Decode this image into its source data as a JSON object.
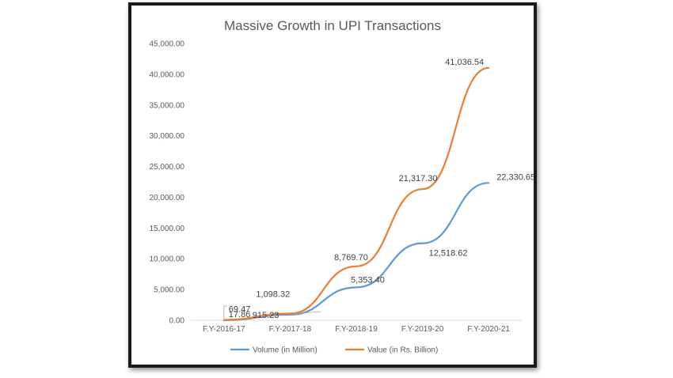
{
  "chart_data": {
    "type": "line",
    "title": "Massive Growth in UPI Transactions",
    "categories": [
      "F.Y-2016-17",
      "F.Y-2017-18",
      "F.Y-2018-19",
      "F.Y-2019-20",
      "F.Y-2020-21"
    ],
    "ylim": [
      0,
      45000
    ],
    "yticks": [
      "0.00",
      "5,000.00",
      "10,000.00",
      "15,000.00",
      "20,000.00",
      "25,000.00",
      "30,000.00",
      "35,000.00",
      "40,000.00",
      "45,000.00"
    ],
    "legend_position": "bottom",
    "grid": false,
    "series": [
      {
        "name": "Volume (in Million)",
        "color": "#5b9bd5",
        "values": [
          17.86,
          915.23,
          5353.4,
          12518.62,
          22330.65
        ],
        "labels": [
          "17.86",
          "915.23",
          "5,353.40",
          "12,518.62",
          "22,330.65"
        ]
      },
      {
        "name": "Value (in Rs. Billion)",
        "color": "#ed7d31",
        "values": [
          69.47,
          1098.32,
          8769.7,
          21317.3,
          41036.54
        ],
        "labels": [
          "69.47",
          "1,098.32",
          "8,769.70",
          "21,317.30",
          "41,036.54"
        ]
      }
    ]
  }
}
